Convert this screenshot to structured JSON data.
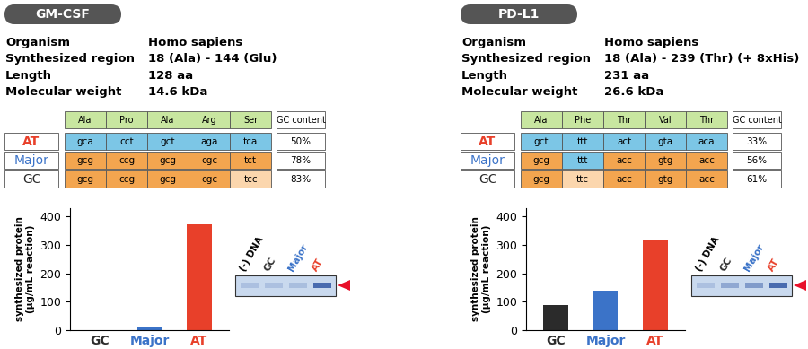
{
  "panels": [
    {
      "badge": "GM-CSF",
      "info": [
        [
          "Organism",
          "Homo sapiens"
        ],
        [
          "Synthesized region",
          "18 (Ala) - 144 (Glu)"
        ],
        [
          "Length",
          "128 aa"
        ],
        [
          "Molecular weight",
          "14.6 kDa"
        ]
      ],
      "codon_table": {
        "header": [
          "Ala",
          "Pro",
          "Ala",
          "Arg",
          "Ser"
        ],
        "gc_header": "GC content",
        "rows": [
          {
            "name": "AT",
            "color": "#e8402a",
            "codons": [
              "gca",
              "cct",
              "gct",
              "aga",
              "tca"
            ],
            "gc_content": "50%"
          },
          {
            "name": "Major",
            "color": "#3b73c8",
            "codons": [
              "gcg",
              "ccg",
              "gcg",
              "cgc",
              "tct"
            ],
            "gc_content": "78%"
          },
          {
            "name": "GC",
            "color": "#2b2b2b",
            "codons": [
              "gcg",
              "ccg",
              "gcg",
              "cgc",
              "tcc"
            ],
            "gc_content": "83%"
          }
        ]
      },
      "gel_lanes": [
        "(-) DNA",
        "GC",
        "Major",
        "AT"
      ]
    },
    {
      "badge": "PD-L1",
      "info": [
        [
          "Organism",
          "Homo sapiens"
        ],
        [
          "Synthesized region",
          "18 (Ala) - 239 (Thr) (+ 8xHis)"
        ],
        [
          "Length",
          "231 aa"
        ],
        [
          "Molecular weight",
          "26.6 kDa"
        ]
      ],
      "codon_table": {
        "header": [
          "Ala",
          "Phe",
          "Thr",
          "Val",
          "Thr"
        ],
        "gc_header": "GC content",
        "rows": [
          {
            "name": "AT",
            "color": "#e8402a",
            "codons": [
              "gct",
              "ttt",
              "act",
              "gta",
              "aca"
            ],
            "gc_content": "33%"
          },
          {
            "name": "Major",
            "color": "#3b73c8",
            "codons": [
              "gcg",
              "ttt",
              "acc",
              "gtg",
              "acc"
            ],
            "gc_content": "56%"
          },
          {
            "name": "GC",
            "color": "#2b2b2b",
            "codons": [
              "gcg",
              "ttc",
              "acc",
              "gtg",
              "acc"
            ],
            "gc_content": "61%"
          }
        ]
      },
      "gel_lanes": [
        "(-) DNA",
        "GC",
        "Major",
        "AT"
      ]
    }
  ],
  "chart_data": [
    {
      "type": "bar",
      "categories": [
        "GC",
        "Major",
        "AT"
      ],
      "values": [
        0,
        10,
        372
      ],
      "colors": [
        "#2b2b2b",
        "#3b73c8",
        "#e8402a"
      ],
      "y_label": "synthesized protein\n(µg/mL reaction)",
      "ylim": [
        0,
        430
      ],
      "yticks": [
        0,
        100,
        200,
        300,
        400
      ]
    },
    {
      "type": "bar",
      "categories": [
        "GC",
        "Major",
        "AT"
      ],
      "values": [
        90,
        138,
        320
      ],
      "colors": [
        "#2b2b2b",
        "#3b73c8",
        "#e8402a"
      ],
      "y_label": "synthesized protein\n(µg/mL reaction)",
      "ylim": [
        0,
        430
      ],
      "yticks": [
        0,
        100,
        200,
        300,
        400
      ]
    }
  ]
}
